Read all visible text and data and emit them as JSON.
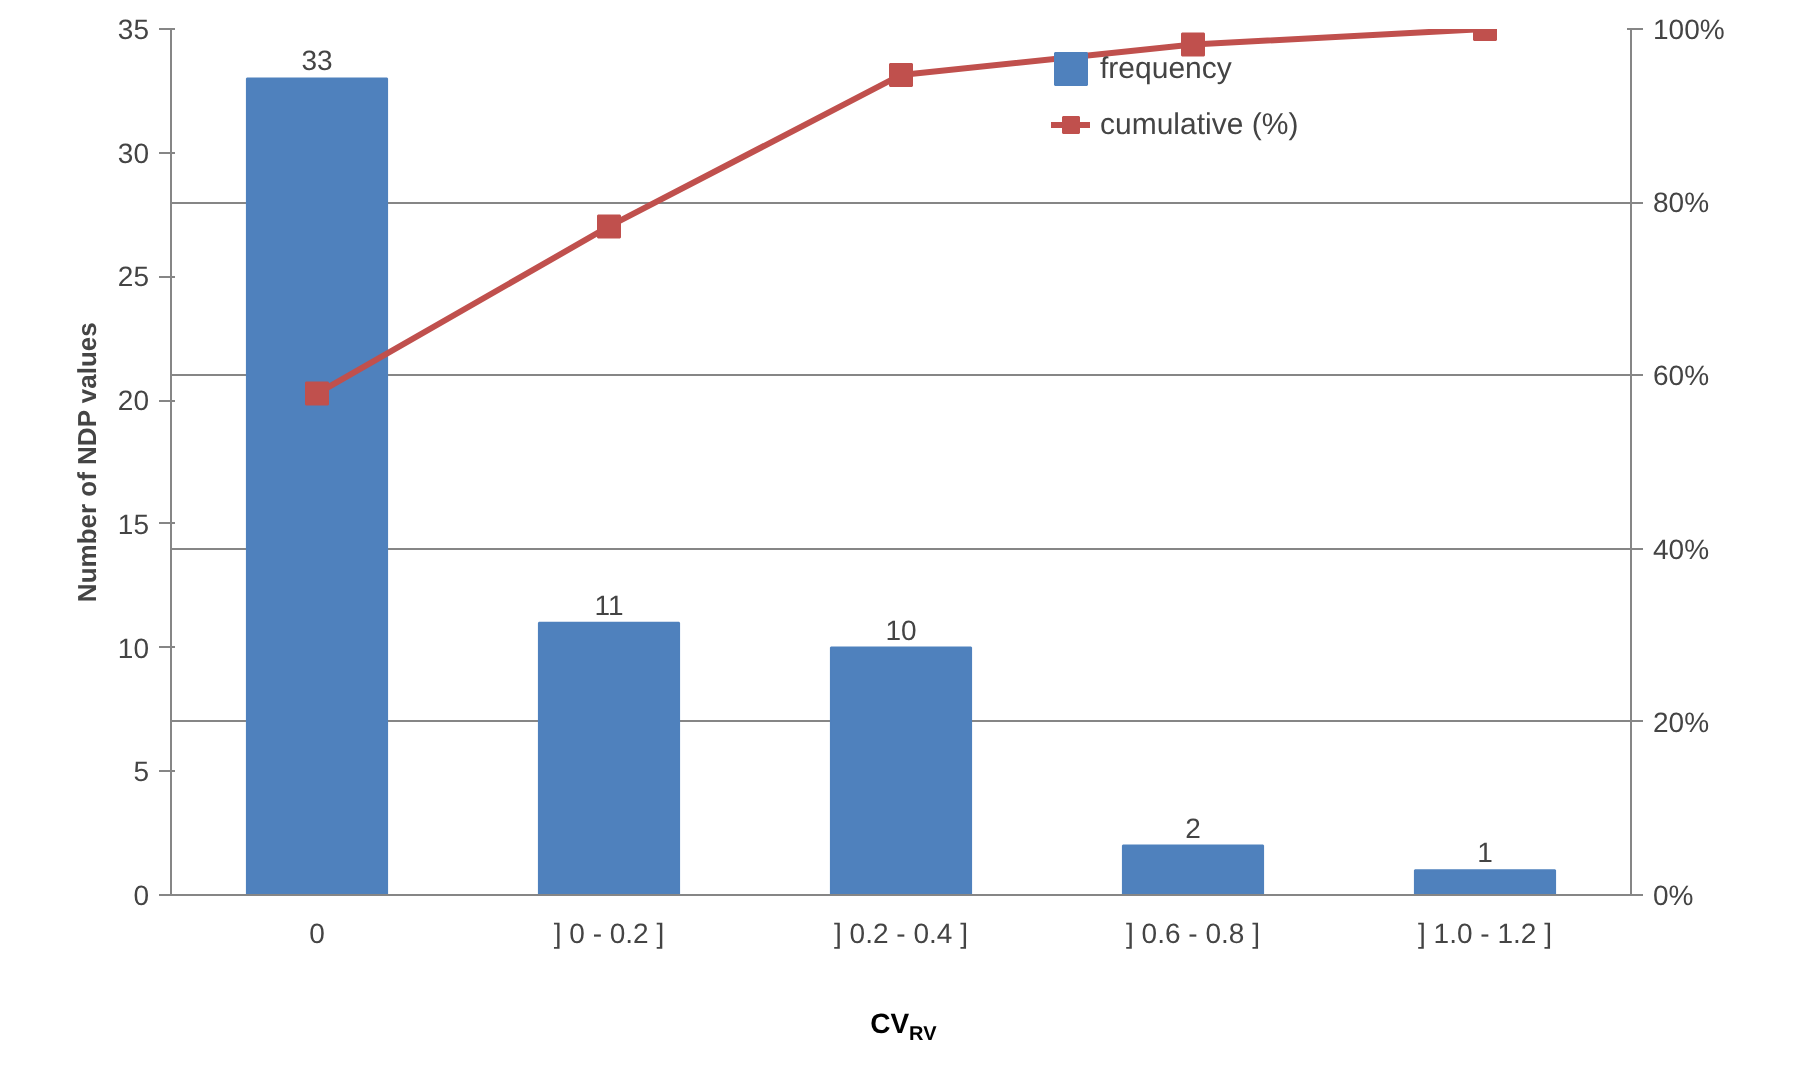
{
  "chart_data": {
    "type": "bar",
    "xlabel": "CV$_{RV}$",
    "ylabel": "Number of NDP values",
    "categories": [
      "0",
      "] 0 - 0.2 ]",
      "] 0.2 - 0.4 ]",
      "] 0.6 - 0.8 ]",
      "] 1.0 - 1.2 ]"
    ],
    "series": [
      {
        "name": "frequency",
        "color": "#4f81bd",
        "values": [
          33,
          11,
          10,
          2,
          1
        ],
        "value_labels": [
          "33",
          "11",
          "10",
          "2",
          "1"
        ]
      },
      {
        "name": "cumulative (%)",
        "type": "line",
        "axis": "y2",
        "color": "#c0504d",
        "marker": "square",
        "values": [
          57.9,
          77.2,
          94.7,
          98.2,
          100
        ]
      }
    ],
    "ylim": [
      0,
      35
    ],
    "yticks": [
      0,
      5,
      10,
      15,
      20,
      25,
      30,
      35
    ],
    "y2lim": [
      0,
      100
    ],
    "y2ticks": [
      {
        "value": 0,
        "label": "0%"
      },
      {
        "value": 20,
        "label": "20%"
      },
      {
        "value": 40,
        "label": "40%"
      },
      {
        "value": 60,
        "label": "60%"
      },
      {
        "value": 80,
        "label": "80%"
      },
      {
        "value": 100,
        "label": "100%"
      }
    ],
    "grid": "y2",
    "legend": "top right"
  }
}
